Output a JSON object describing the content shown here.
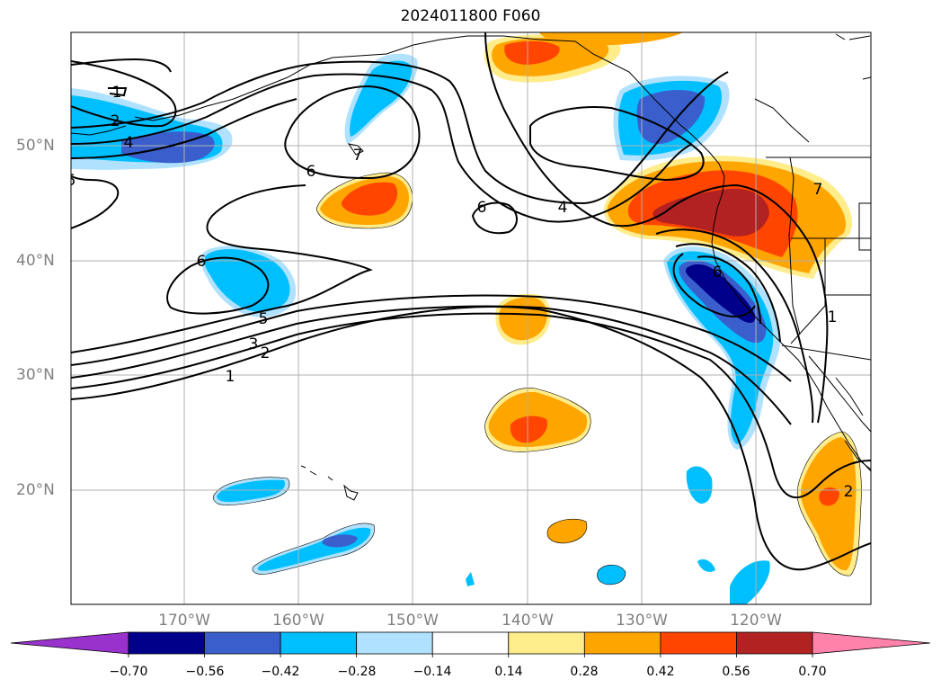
{
  "title": "2024011800 F060",
  "lat_labels": [
    "50°N",
    "40°N",
    "30°N",
    "20°N"
  ],
  "lon_labels": [
    "170°W",
    "160°W",
    "150°W",
    "140°W",
    "130°W",
    "120°W"
  ],
  "contour_labels": [
    "1",
    "2",
    "3",
    "4",
    "5",
    "6",
    "7"
  ],
  "colorbar": {
    "colors": [
      "#9932cc",
      "#00008b",
      "#3a5fcd",
      "#00bfff",
      "#b0e2ff",
      "#ffffff",
      "#ffec8b",
      "#ffa500",
      "#ff4500",
      "#b22222",
      "#ff82ab"
    ],
    "ticks": [
      "−0.70",
      "−0.56",
      "−0.42",
      "−0.28",
      "−0.14",
      "0.14",
      "0.28",
      "0.42",
      "0.56",
      "0.70"
    ]
  }
}
